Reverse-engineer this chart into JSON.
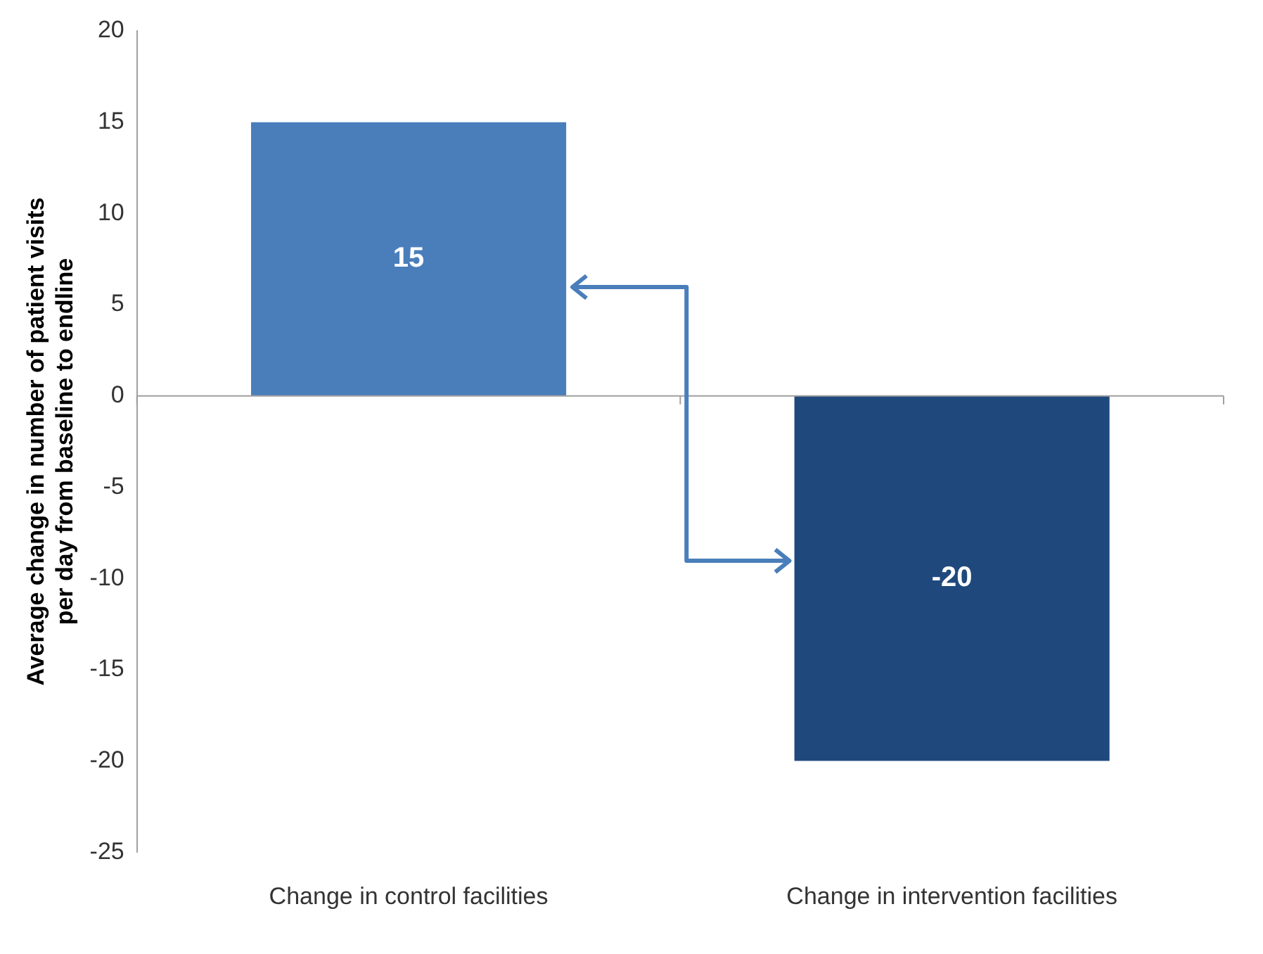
{
  "chart_data": {
    "type": "bar",
    "ylabel": "Average change in number of patient visits per day from baseline to endline",
    "categories": [
      "Change in control facilities",
      "Change in intervention facilities"
    ],
    "values": [
      15,
      -20
    ],
    "colors": [
      "#4a7ebb",
      "#1f497d"
    ],
    "ylim": [
      -25,
      20
    ],
    "yticks": [
      -25,
      -20,
      -15,
      -10,
      -5,
      0,
      5,
      10,
      15,
      20
    ],
    "data_labels": true,
    "legend": false
  }
}
